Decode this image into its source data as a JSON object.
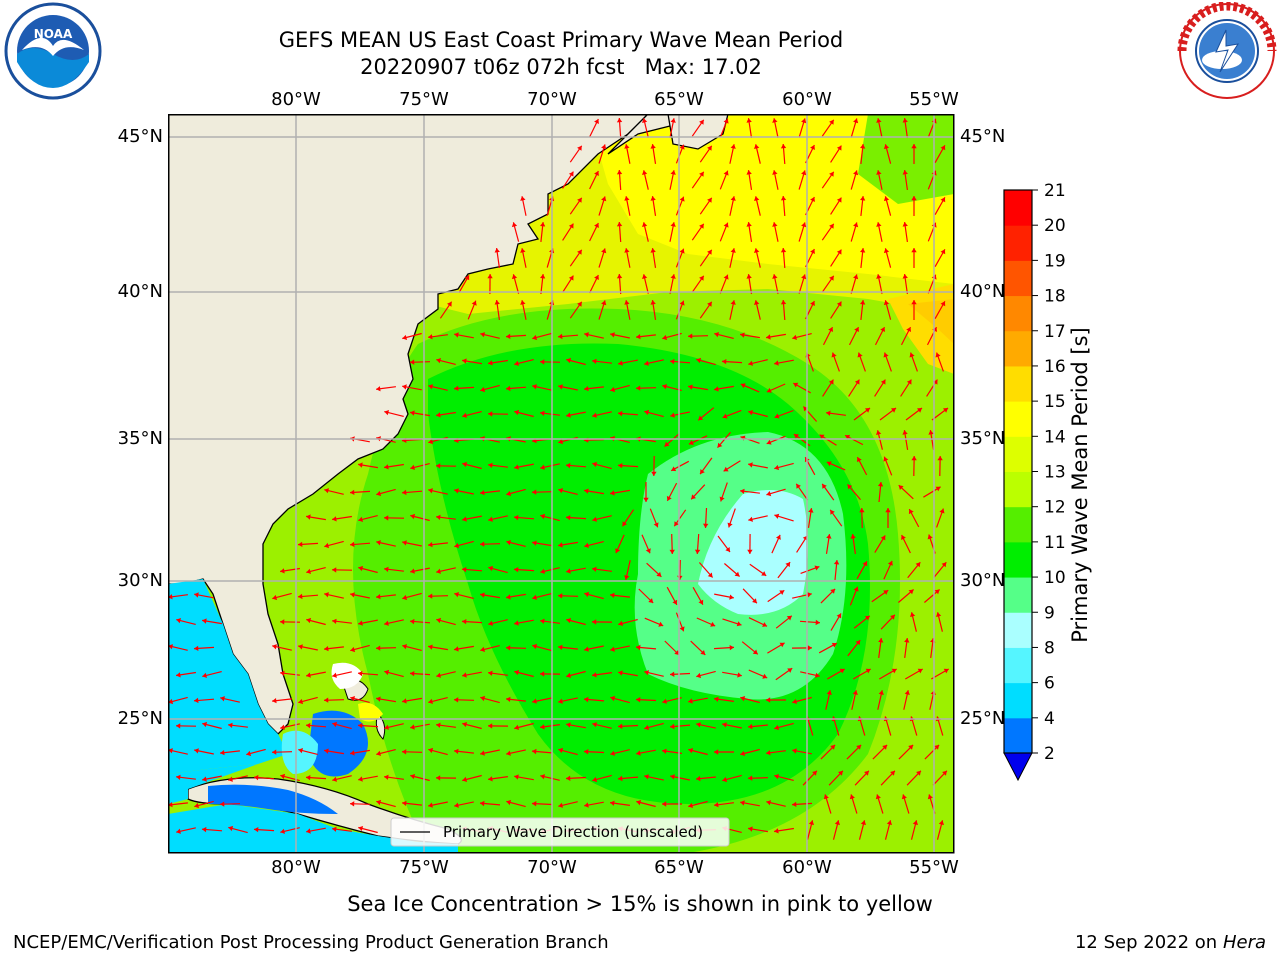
{
  "title_line1": "GEFS MEAN US East Coast Primary Wave Mean Period",
  "title_line2": "20220907 t06z 072h fcst   Max: 17.02",
  "logos": {
    "left": "NOAA",
    "right": "National Weather Service"
  },
  "map": {
    "lon_labels": [
      "80°W",
      "75°W",
      "70°W",
      "65°W",
      "60°W",
      "55°W"
    ],
    "lat_labels": [
      "45°N",
      "40°N",
      "35°N",
      "30°N",
      "25°N"
    ],
    "legend_label": "Primary Wave Direction (unscaled)",
    "land_color": "#efecdc",
    "arrow_color": "#ff0000"
  },
  "colorbar": {
    "label": "Primary Wave Mean Period [s]",
    "ticks": [
      "2",
      "4",
      "6",
      "8",
      "9",
      "10",
      "11",
      "12",
      "13",
      "14",
      "15",
      "16",
      "17",
      "18",
      "19",
      "20",
      "21"
    ],
    "colors": [
      "#0077ff",
      "#00ddff",
      "#55f5ff",
      "#aaffff",
      "#55ff88",
      "#00ee00",
      "#55ee00",
      "#bbff00",
      "#ddff00",
      "#ffff00",
      "#ffdd00",
      "#ffaa00",
      "#ff8800",
      "#ff5500",
      "#ff2200",
      "#ff0000"
    ],
    "extend_color": "#0000ee"
  },
  "sea_ice_note": "Sea Ice Concentration > 15% is shown in pink to yellow",
  "footer_left": "NCEP/EMC/Verification Post Processing Product Generation Branch",
  "footer_date": "12 Sep 2022 on",
  "footer_machine": "Hera"
}
